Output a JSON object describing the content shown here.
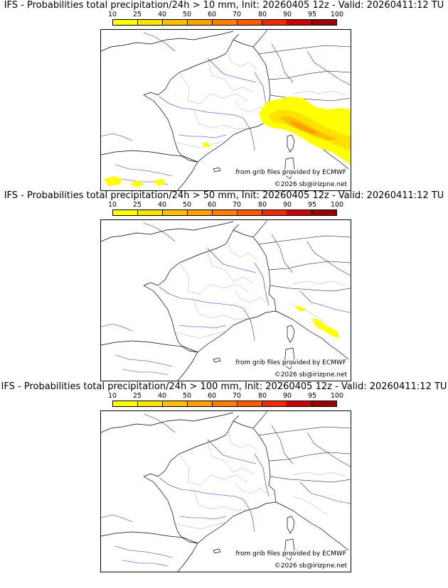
{
  "panels": [
    {
      "title": "IFS - Probabilities total precipitation/24h > 10 mm, Init: 20260405 12z - Valid: 20260411:12 TU",
      "threshold": "10 mm",
      "has_fill": true,
      "fill_level": "widespread"
    },
    {
      "title": "IFS - Probabilities total precipitation/24h > 50 mm, Init: 20260405 12z - Valid: 20260411:12 TU",
      "threshold": "50 mm",
      "has_fill": true,
      "fill_level": "small"
    },
    {
      "title": "IFS - Probabilities total precipitation/24h > 100 mm, Init: 20260405 12z - Valid: 20260411:12 TU",
      "threshold": "100 mm",
      "has_fill": false,
      "fill_level": "none"
    }
  ],
  "legend": {
    "levels": [
      "10",
      "25",
      "40",
      "50",
      "60",
      "70",
      "80",
      "90",
      "95",
      "100"
    ],
    "colors": [
      "#ffff00",
      "#ffe100",
      "#ffbf00",
      "#ff9f00",
      "#ff7f00",
      "#ff5a00",
      "#ee2a00",
      "#c80000",
      "#9a0000",
      "#5a0000"
    ]
  },
  "credits": {
    "source": "from grib files provided by ECMWF",
    "copyright": "©2026 sb@irizpne.net"
  }
}
